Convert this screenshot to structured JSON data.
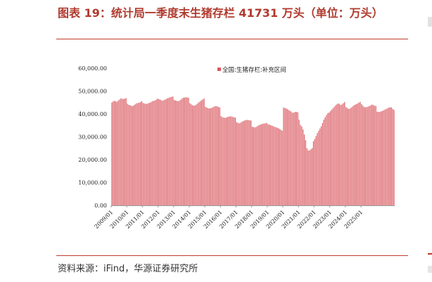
{
  "figure": {
    "title": "图表 19：统计局一季度末生猪存栏 41731 万头（单位：万头）",
    "source": "资料来源：iFind，华源证券研究所"
  },
  "chart_data": {
    "type": "bar",
    "title": "",
    "xlabel": "",
    "ylabel": "",
    "ylim": [
      0,
      60000
    ],
    "yticks": [
      "0.00",
      "10,000.00",
      "20,000.00",
      "30,000.00",
      "40,000.00",
      "50,000.00",
      "60,000.00"
    ],
    "xticks": [
      "2009/01",
      "2010/01",
      "2011/01",
      "2012/01",
      "2013/01",
      "2014/01",
      "2015/01",
      "2016/01",
      "2017/01",
      "2018/01",
      "2019/01",
      "2020/01",
      "2021/01",
      "2022/01",
      "2023/01",
      "2024/01",
      "2025/01"
    ],
    "grid": false,
    "legend_position": "top-right",
    "color": "#d9585f",
    "series": [
      {
        "name": "全国:生猪存栏:补充区间",
        "start": "2009/01",
        "frequency": "monthly",
        "values": [
          45000,
          45500,
          45700,
          45600,
          45300,
          45900,
          46300,
          46800,
          46600,
          46500,
          46700,
          46900,
          44500,
          44000,
          43800,
          43600,
          43400,
          43800,
          44200,
          44600,
          44800,
          44900,
          45200,
          45600,
          44800,
          44600,
          44400,
          44500,
          44600,
          44900,
          45100,
          45500,
          45700,
          45800,
          46200,
          46700,
          46500,
          46300,
          46000,
          45800,
          46000,
          46300,
          46600,
          46900,
          47100,
          47300,
          47500,
          47600,
          46100,
          45900,
          45700,
          45600,
          45800,
          46200,
          46700,
          47100,
          47200,
          47300,
          47200,
          47100,
          44700,
          44200,
          43800,
          43600,
          43700,
          44100,
          44600,
          45100,
          45600,
          46000,
          46400,
          46700,
          43100,
          42800,
          42500,
          42400,
          42500,
          42700,
          43000,
          43300,
          43400,
          43300,
          43100,
          42800,
          39000,
          38600,
          38400,
          38300,
          38400,
          38700,
          38800,
          39000,
          38900,
          38700,
          38500,
          38400,
          36400,
          36100,
          35900,
          36200,
          36500,
          36900,
          37100,
          37300,
          37400,
          37300,
          37200,
          37100,
          34400,
          34200,
          34100,
          34300,
          34700,
          35000,
          35300,
          35500,
          35700,
          35800,
          35900,
          36100,
          35500,
          35300,
          35100,
          34900,
          34700,
          34400,
          34200,
          34000,
          33800,
          33400,
          33100,
          32700,
          42800,
          42600,
          42400,
          42100,
          41700,
          41400,
          41000,
          40500,
          40600,
          40900,
          40900,
          40700,
          37500,
          35200,
          34500,
          33200,
          31000,
          28500,
          25000,
          24000,
          24100,
          24500,
          25000,
          28000,
          29000,
          30300,
          31600,
          32600,
          33600,
          34600,
          36000,
          37500,
          38500,
          39500,
          40300,
          40600,
          41200,
          41800,
          42400,
          43100,
          43800,
          44200,
          44600,
          44300,
          43900,
          44200,
          44700,
          45200,
          43000,
          42600,
          42200,
          42300,
          42700,
          43200,
          43700,
          44000,
          44300,
          44600,
          44900,
          45300,
          44300,
          43600,
          43000,
          42900,
          43000,
          43200,
          43500,
          43700,
          44100,
          43900,
          43600,
          43500,
          41000,
          40900,
          40900,
          41100,
          41300,
          41600,
          41900,
          42200,
          42500,
          42800,
          42800,
          42900,
          42200,
          41731
        ]
      }
    ]
  }
}
